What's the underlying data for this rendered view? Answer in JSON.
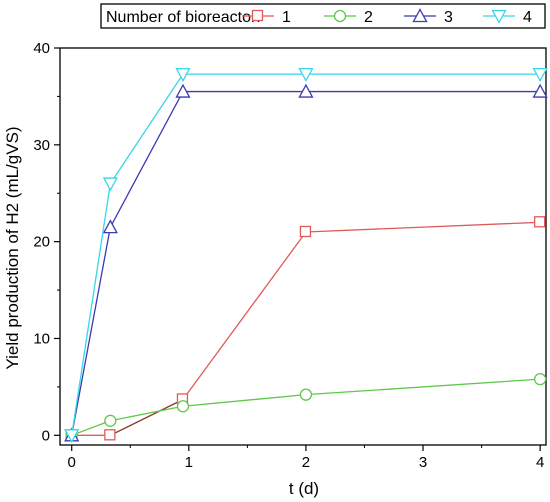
{
  "chart_data": {
    "type": "line",
    "xlabel": "t (d)",
    "ylabel": "Yield production of H2 (mL/gVS)",
    "x_ticks": [
      "0",
      "1",
      "2",
      "3",
      "4"
    ],
    "y_ticks": [
      "0",
      "10",
      "20",
      "30",
      "40"
    ],
    "xlim": [
      -0.1,
      4.05
    ],
    "ylim": [
      -1,
      40
    ],
    "legend_title": "Number of bioreactor:",
    "legend_position": "top",
    "grid": false,
    "series": [
      {
        "name": "1",
        "color": "#e05a5a",
        "marker": "square",
        "x": [
          0,
          0.33,
          0.95,
          2,
          4
        ],
        "y": [
          0,
          0,
          3.7,
          21,
          22
        ]
      },
      {
        "name": "2",
        "color": "#5ec84a",
        "marker": "circle",
        "x": [
          0,
          0.33,
          0.95,
          2,
          4
        ],
        "y": [
          0,
          1.5,
          3.0,
          4.2,
          5.8
        ]
      },
      {
        "name": "3",
        "color": "#3b3bb0",
        "marker": "triangle-up",
        "x": [
          0,
          0.33,
          0.95,
          2,
          4
        ],
        "y": [
          0,
          21.5,
          35.5,
          35.5,
          35.5
        ]
      },
      {
        "name": "4",
        "color": "#38d6ea",
        "marker": "triangle-down",
        "x": [
          0,
          0.33,
          0.95,
          2,
          4
        ],
        "y": [
          0,
          26,
          37.3,
          37.3,
          37.3
        ]
      }
    ]
  }
}
